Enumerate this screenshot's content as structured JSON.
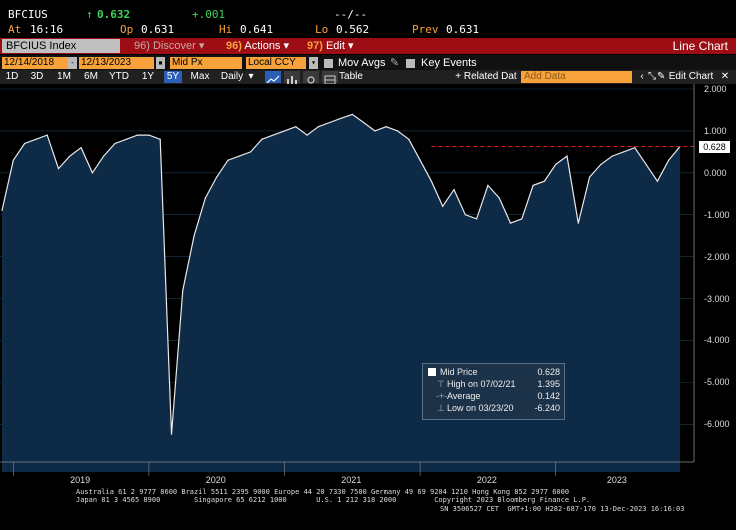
{
  "quote": {
    "ticker": "BFCIUS",
    "arrow": "↑",
    "last": "0.632",
    "at_label": "At",
    "time": "16:16",
    "op_label": "Op",
    "open": "0.631",
    "hi_label": "Hi",
    "high": "0.641",
    "lo_label": "Lo",
    "low": "0.562",
    "prev_label": "Prev",
    "prev": "0.631",
    "change": "+.001",
    "bidask": "--/--"
  },
  "toolbar": {
    "security": "BFCIUS Index",
    "discover_num": "96)",
    "discover": "Discover",
    "actions_num": "96)",
    "actions": "Actions",
    "edit_num": "97)",
    "edit": "Edit",
    "view_title": "Line Chart"
  },
  "controls": {
    "start_date": "12/14/2018",
    "end_date": "12/13/2023",
    "field": "Mid Px",
    "currency": "Local CCY",
    "mov_avgs": "Mov Avgs",
    "key_events": "Key Events"
  },
  "periods": [
    {
      "label": "1D",
      "selected": false
    },
    {
      "label": "3D",
      "selected": false
    },
    {
      "label": "1M",
      "selected": false
    },
    {
      "label": "6M",
      "selected": false
    },
    {
      "label": "YTD",
      "selected": false
    },
    {
      "label": "1Y",
      "selected": false
    },
    {
      "label": "5Y",
      "selected": true
    },
    {
      "label": "Max",
      "selected": false
    }
  ],
  "frequency": "Daily",
  "table_label": "Table",
  "related_data": "+ Related Dat",
  "add_data_placeholder": "Add Data",
  "edit_chart": "Edit Chart",
  "colors": {
    "accent_amber": "#f7a23b",
    "area_fill": "#0d2a47",
    "line": "#e8e8e8",
    "red_bar": "#9c0e14",
    "reference_line": "#e02020"
  },
  "chart_data": {
    "type": "area",
    "series": [
      {
        "name": "Mid Price",
        "x": [
          "2018-12",
          "2019-01",
          "2019-02",
          "2019-03",
          "2019-04",
          "2019-05",
          "2019-06",
          "2019-07",
          "2019-08",
          "2019-09",
          "2019-10",
          "2019-11",
          "2019-12",
          "2020-01",
          "2020-02",
          "2020-03",
          "2020-04",
          "2020-05",
          "2020-06",
          "2020-07",
          "2020-08",
          "2020-09",
          "2020-10",
          "2020-11",
          "2020-12",
          "2021-01",
          "2021-02",
          "2021-03",
          "2021-04",
          "2021-05",
          "2021-06",
          "2021-07",
          "2021-08",
          "2021-09",
          "2021-10",
          "2021-11",
          "2021-12",
          "2022-01",
          "2022-02",
          "2022-03",
          "2022-04",
          "2022-05",
          "2022-06",
          "2022-07",
          "2022-08",
          "2022-09",
          "2022-10",
          "2022-11",
          "2022-12",
          "2023-01",
          "2023-02",
          "2023-03",
          "2023-04",
          "2023-05",
          "2023-06",
          "2023-07",
          "2023-08",
          "2023-09",
          "2023-10",
          "2023-11",
          "2023-12"
        ],
        "values": [
          -0.9,
          0.3,
          0.7,
          0.8,
          0.9,
          0.1,
          0.4,
          0.6,
          0.0,
          0.4,
          0.7,
          0.8,
          0.9,
          0.9,
          0.8,
          -6.24,
          -2.8,
          -1.5,
          -0.6,
          -0.1,
          0.3,
          0.4,
          0.5,
          0.8,
          0.9,
          1.0,
          1.1,
          0.9,
          1.1,
          1.2,
          1.3,
          1.395,
          1.2,
          1.0,
          1.1,
          1.0,
          0.8,
          0.3,
          -0.2,
          -0.8,
          -0.4,
          -1.0,
          -1.1,
          -0.3,
          -0.6,
          -1.2,
          -1.1,
          -0.3,
          -0.2,
          0.2,
          0.4,
          -1.2,
          -0.1,
          0.2,
          0.4,
          0.5,
          0.6,
          0.2,
          -0.2,
          0.3,
          0.628
        ]
      }
    ],
    "x_ticks": [
      "2019",
      "2020",
      "2021",
      "2022",
      "2023"
    ],
    "y_ticks": [
      "2.000",
      "1.000",
      "0.000",
      "-1.000",
      "-2.000",
      "-3.000",
      "-4.000",
      "-5.000",
      "-6.000"
    ],
    "ylim": [
      -6.9,
      2.0
    ],
    "last_value_label": "0.628",
    "reference_line": 0.628,
    "legend_placement": "bottom-right",
    "legend": {
      "series_name": "Mid Price",
      "series_value": "0.628",
      "high_label": "High on 07/02/21",
      "high_value": "1.395",
      "avg_label": "Average",
      "avg_value": "0.142",
      "low_label": "Low on 03/23/20",
      "low_value": "-6.240"
    }
  },
  "footer": {
    "line1": "Australia 61 2 9777 8600 Brazil 5511 2395 9000 Europe 44 20 7330 7500 Germany 49 69 9204 1210 Hong Kong 852 2977 6000",
    "line2": "Japan 81 3 4565 8900        Singapore 65 6212 1000       U.S. 1 212 318 2000         Copyright 2023 Bloomberg Finance L.P.",
    "line3": "SN 3506527 CET  GMT+1:00 H282-687-170 13-Dec-2023 16:16:03"
  }
}
